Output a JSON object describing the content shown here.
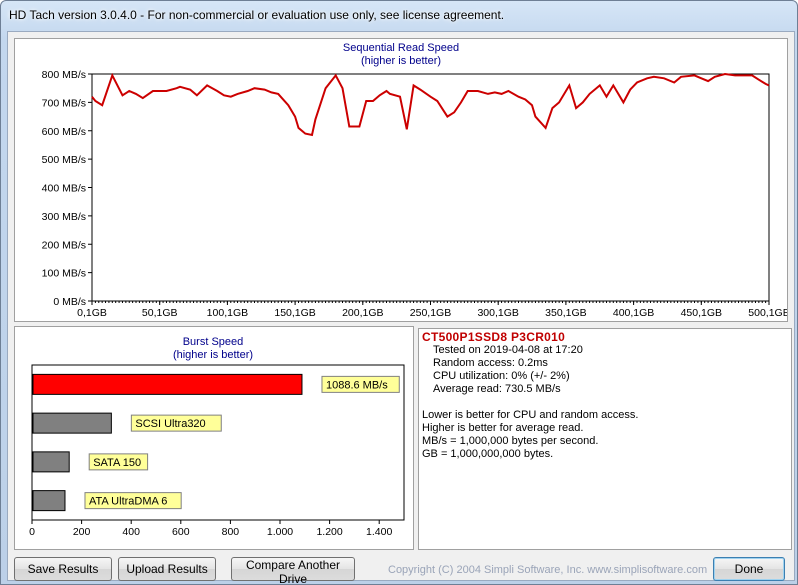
{
  "window": {
    "title": "HD Tach version 3.0.4.0  - For non-commercial or evaluation use only, see license agreement."
  },
  "seq_chart": {
    "title": "Sequential Read Speed",
    "subtitle": "(higher is better)",
    "y_ticks": [
      "0 MB/s",
      "100 MB/s",
      "200 MB/s",
      "300 MB/s",
      "400 MB/s",
      "500 MB/s",
      "600 MB/s",
      "700 MB/s",
      "800 MB/s"
    ],
    "x_ticks": [
      "0,1GB",
      "50,1GB",
      "100,1GB",
      "150,1GB",
      "200,1GB",
      "250,1GB",
      "300,1GB",
      "350,1GB",
      "400,1GB",
      "450,1GB",
      "500,1GB"
    ],
    "line_color": "#cc0000"
  },
  "chart_data": [
    {
      "type": "line",
      "title": "Sequential Read Speed",
      "subtitle": "(higher is better)",
      "xlabel": "",
      "ylabel": "",
      "xlim": [
        0.1,
        500.1
      ],
      "ylim": [
        0,
        800
      ],
      "grid": false,
      "series": [
        {
          "x": [
            0.1,
            2.6,
            7.6,
            15.1,
            22.6,
            27.6,
            32.6,
            37.6,
            45.1,
            50.1,
            55.1,
            62.6,
            65.1,
            72.6,
            77.6,
            85.1,
            92.6,
            97.6,
            102.6,
            107.6,
            115.1,
            120.1,
            127.6,
            132.6,
            137.6,
            145.1,
            150.1,
            152.6,
            157.6,
            162.6,
            165.1,
            172.6,
            180.1,
            185.1,
            190.1,
            197.6,
            202.6,
            207.6,
            212.6,
            217.6,
            220.1,
            227.6,
            232.6,
            237.6,
            242.6,
            250.1,
            255.1,
            262.6,
            267.6,
            272.6,
            277.6,
            285.1,
            292.6,
            297.6,
            302.6,
            307.6,
            315.1,
            320.1,
            325.1,
            327.6,
            335.1,
            340.1,
            345.1,
            352.6,
            357.6,
            362.6,
            367.6,
            375.1,
            380.1,
            385.1,
            392.6,
            397.6,
            402.6,
            410.1,
            415.1,
            422.6,
            430.1,
            435.1,
            445.1,
            450.1,
            455.1,
            460.1,
            467.6,
            475.1,
            482.6,
            487.6,
            492.6,
            497.6,
            500.1
          ],
          "y": [
            720,
            705,
            690,
            795,
            725,
            740,
            730,
            715,
            740,
            740,
            740,
            750,
            755,
            745,
            725,
            760,
            740,
            725,
            720,
            730,
            740,
            750,
            745,
            735,
            730,
            690,
            650,
            610,
            590,
            585,
            640,
            750,
            795,
            750,
            615,
            615,
            705,
            705,
            725,
            740,
            730,
            720,
            605,
            760,
            745,
            720,
            705,
            650,
            665,
            700,
            740,
            740,
            730,
            735,
            730,
            740,
            720,
            710,
            690,
            650,
            610,
            680,
            700,
            760,
            680,
            700,
            730,
            760,
            720,
            760,
            700,
            745,
            770,
            785,
            790,
            785,
            770,
            790,
            795,
            785,
            775,
            790,
            800,
            795,
            795,
            795,
            780,
            765,
            760
          ]
        }
      ]
    },
    {
      "type": "bar",
      "title": "Burst Speed",
      "subtitle": "(higher is better)",
      "xlim": [
        0,
        1500
      ],
      "x_ticks": [
        "0",
        "200",
        "400",
        "600",
        "800",
        "1.000",
        "1.200",
        "1.400"
      ],
      "categories": [
        "1088.6 MB/s",
        "SCSI Ultra320",
        "SATA 150",
        "ATA UltraDMA 6"
      ],
      "values": [
        1088.6,
        320,
        150,
        133
      ],
      "colors": [
        "#ff0000",
        "#808080",
        "#808080",
        "#808080"
      ]
    }
  ],
  "burst": {
    "title": "Burst Speed",
    "subtitle": "(higher is better)",
    "labels": [
      "1088.6 MB/s",
      "SCSI Ultra320",
      "SATA 150",
      "ATA UltraDMA 6"
    ],
    "x_ticks": [
      "0",
      "200",
      "400",
      "600",
      "800",
      "1.000",
      "1.200",
      "1.400"
    ]
  },
  "info": {
    "drive_name": "CT500P1SSD8 P3CR010",
    "tested": "Tested on 2019-04-08 at 17:20",
    "random_access": "Random access: 0.2ms",
    "cpu": "CPU utilization: 0% (+/- 2%)",
    "average_read": "Average read: 730.5 MB/s",
    "note1": "Lower is better for CPU and random access.",
    "note2": "Higher is better for average read.",
    "note3": "MB/s = 1,000,000 bytes per second.",
    "note4": "GB = 1,000,000,000 bytes."
  },
  "buttons": {
    "save": "Save Results",
    "upload": "Upload Results",
    "compare": "Compare Another Drive",
    "done": "Done"
  },
  "footer": {
    "copyright": "Copyright (C) 2004 Simpli Software, Inc. www.simplisoftware.com"
  }
}
